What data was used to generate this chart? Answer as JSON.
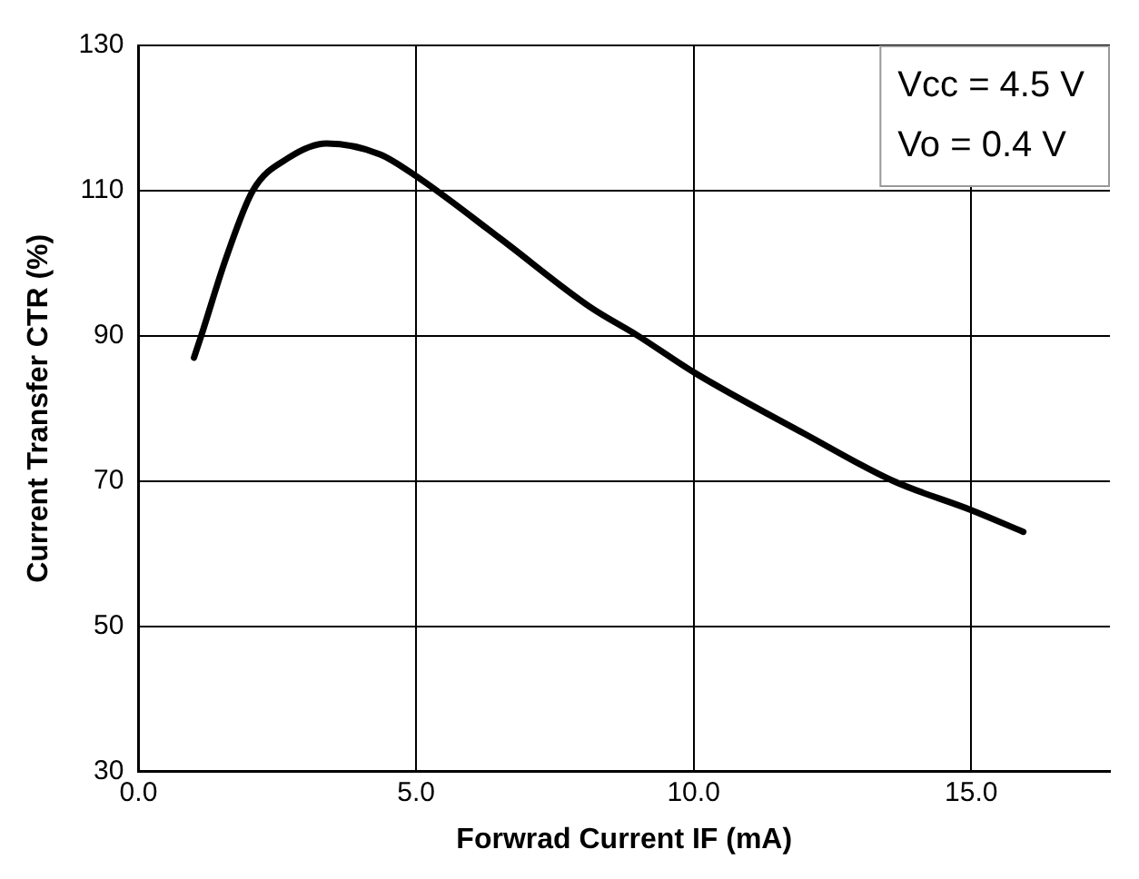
{
  "chart_data": {
    "type": "line",
    "xlabel": "Forwrad Current IF (mA)",
    "ylabel": "Current Transfer CTR (%)",
    "annotations": [
      "Vcc = 4.5 V",
      "Vo = 0.4 V"
    ],
    "x": [
      1.0,
      1.13,
      1.58,
      2.06,
      2.7,
      3.39,
      4.35,
      5.0,
      6.5,
      8.13,
      9.0,
      10.0,
      12.0,
      13.6,
      15.0,
      15.94
    ],
    "series": [
      {
        "color": "#000000",
        "values": [
          87,
          90,
          100.75,
          110,
          114.5,
          116.5,
          115,
          112,
          103.5,
          94,
          90,
          85,
          76.5,
          70,
          66,
          63
        ]
      }
    ],
    "xlim": [
      0,
      17.5
    ],
    "xticks": [
      {
        "value": 0,
        "label": "0.0"
      },
      {
        "value": 5,
        "label": "5.0"
      },
      {
        "value": 10,
        "label": "10.0"
      },
      {
        "value": 15,
        "label": "15.0"
      }
    ],
    "ylim": [
      30,
      130
    ],
    "yticks": [
      30,
      50,
      70,
      90,
      110,
      130
    ],
    "grid": true,
    "legend": false,
    "marker": "none",
    "line_style": "solid"
  }
}
